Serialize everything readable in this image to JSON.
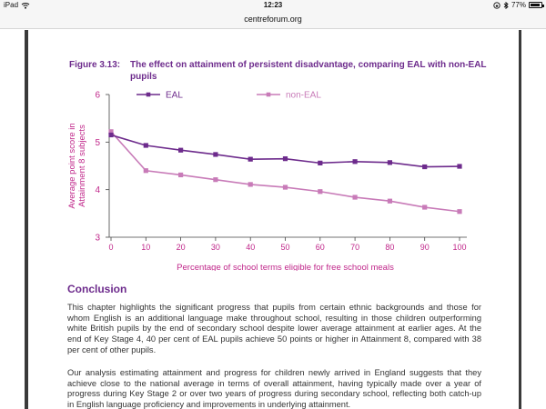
{
  "status_bar": {
    "device": "iPad",
    "time": "12:23",
    "battery": "77%",
    "battery_level": 0.77
  },
  "address_bar": {
    "url": "centreforum.org"
  },
  "figure": {
    "number": "Figure 3.13:",
    "title": "The effect on attainment of persistent disadvantage, comparing EAL with non-EAL pupils"
  },
  "chart_data": {
    "type": "line",
    "title": "The effect on attainment of persistent disadvantage, comparing EAL with non-EAL pupils",
    "xlabel": "Percentage of school terms eligible for free school meals",
    "ylabel": "Average point score in Attainment 8 subjects",
    "x": [
      0,
      10,
      20,
      30,
      40,
      50,
      60,
      70,
      80,
      90,
      100
    ],
    "xlim": [
      0,
      100
    ],
    "ylim": [
      3,
      6
    ],
    "xticks": [
      "0",
      "10",
      "20",
      "30",
      "40",
      "50",
      "60",
      "70",
      "80",
      "90",
      "100"
    ],
    "yticks": [
      "3",
      "4",
      "5",
      "6"
    ],
    "legend": "top",
    "grid": false,
    "series": [
      {
        "name": "EAL",
        "color": "#6d2b8c",
        "values": [
          5.15,
          4.93,
          4.83,
          4.74,
          4.64,
          4.65,
          4.56,
          4.59,
          4.57,
          4.48,
          4.49
        ]
      },
      {
        "name": "non-EAL",
        "color": "#c87bb8",
        "values": [
          5.22,
          4.4,
          4.31,
          4.21,
          4.11,
          4.05,
          3.96,
          3.84,
          3.76,
          3.63,
          3.54
        ]
      }
    ]
  },
  "colors": {
    "heading": "#6d2b8c",
    "axis_text": "#c0278a"
  },
  "section": {
    "heading": "Conclusion"
  },
  "paragraphs": [
    "This chapter highlights the significant progress that pupils from certain ethnic backgrounds and those for whom English is an additional language make throughout school, resulting in those children outperforming white British pupils by the end of secondary school despite lower average attainment at earlier ages. At the end of Key Stage 4, 40 per cent of EAL pupils achieve 50 points or higher in Attainment 8, compared with 38 per cent of other pupils.",
    "Our analysis estimating attainment and progress for children newly arrived in England suggests that they achieve close to the national average in terms of overall attainment, having typically made over a year of progress during Key Stage 2 or over two years of progress during secondary school, reflecting both catch-up in English language proficiency and improvements in underlying attainment."
  ]
}
